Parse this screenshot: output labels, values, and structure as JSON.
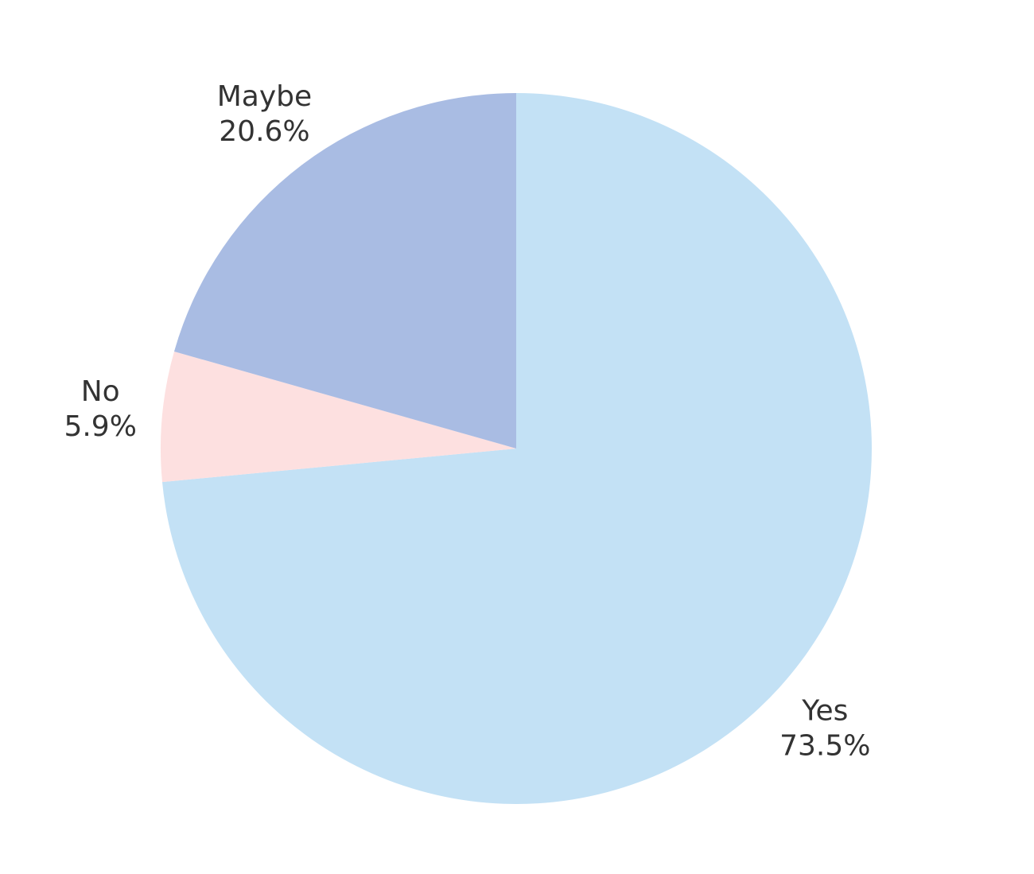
{
  "chart_data": {
    "type": "pie",
    "categories": [
      "Yes",
      "No",
      "Maybe"
    ],
    "values": [
      73.5,
      5.9,
      20.6
    ],
    "value_labels": [
      "73.5%",
      "5.9%",
      "20.6%"
    ],
    "colors": [
      "#c3e1f5",
      "#fde0e0",
      "#a9bce3"
    ]
  }
}
